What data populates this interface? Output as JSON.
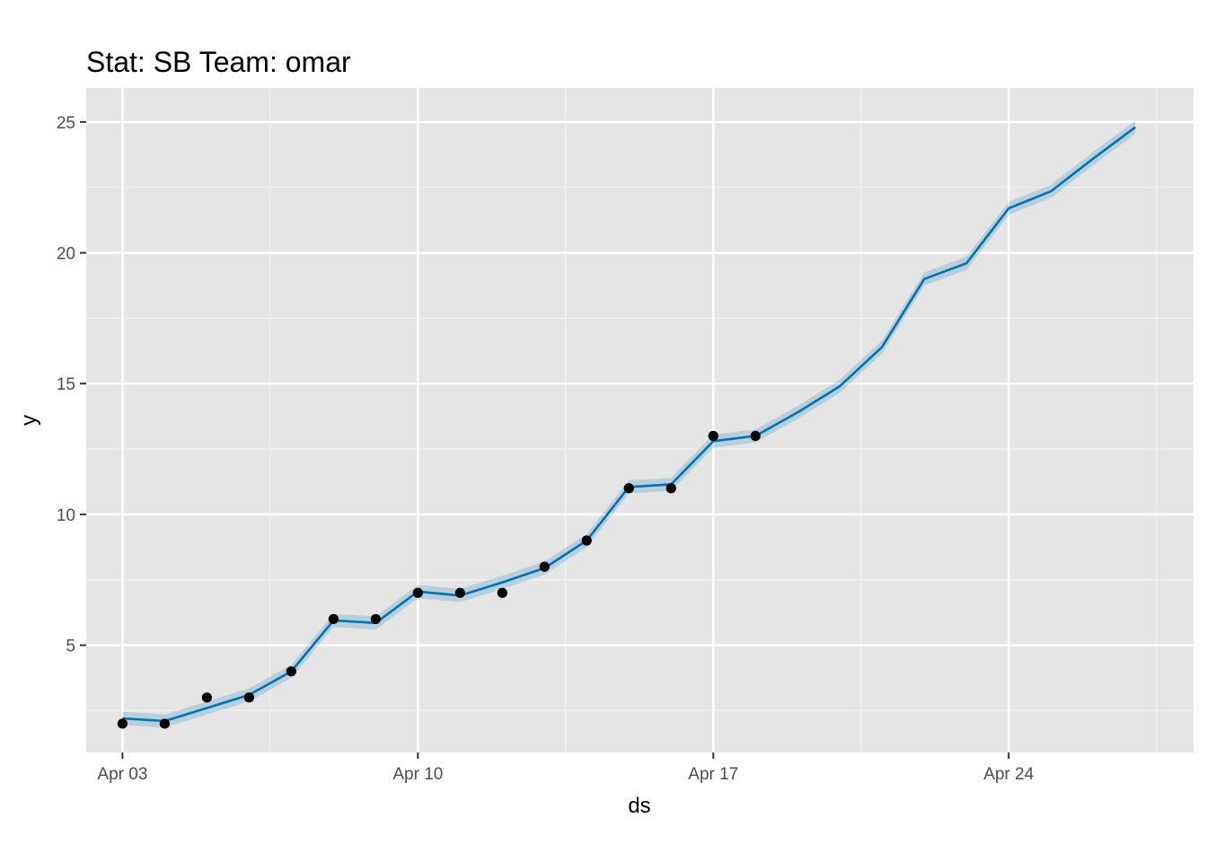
{
  "chart_data": {
    "type": "line",
    "title": "Stat: SB Team: omar",
    "xlabel": "ds",
    "ylabel": "y",
    "x_ticks": [
      {
        "date": "2023-04-03",
        "label": "Apr 03"
      },
      {
        "date": "2023-04-10",
        "label": "Apr 10"
      },
      {
        "date": "2023-04-17",
        "label": "Apr 17"
      },
      {
        "date": "2023-04-24",
        "label": "Apr 24"
      }
    ],
    "y_ticks": [
      5,
      10,
      15,
      20,
      25
    ],
    "xlim": [
      "2023-04-02",
      "2023-04-28"
    ],
    "ylim": [
      0.9,
      26.3
    ],
    "grid": true,
    "series": [
      {
        "kind": "forecast",
        "color": "#0072B2",
        "band_color": "#0072B2",
        "points": [
          {
            "x": "2023-04-03",
            "y": 2.2,
            "lo": 1.95,
            "hi": 2.45
          },
          {
            "x": "2023-04-04",
            "y": 2.1,
            "lo": 1.85,
            "hi": 2.35
          },
          {
            "x": "2023-04-05",
            "y": 2.6,
            "lo": 2.35,
            "hi": 2.85
          },
          {
            "x": "2023-04-06",
            "y": 3.1,
            "lo": 2.85,
            "hi": 3.35
          },
          {
            "x": "2023-04-07",
            "y": 4.0,
            "lo": 3.75,
            "hi": 4.25
          },
          {
            "x": "2023-04-08",
            "y": 5.95,
            "lo": 5.7,
            "hi": 6.2
          },
          {
            "x": "2023-04-09",
            "y": 5.85,
            "lo": 5.6,
            "hi": 6.1
          },
          {
            "x": "2023-04-10",
            "y": 7.05,
            "lo": 6.8,
            "hi": 7.3
          },
          {
            "x": "2023-04-11",
            "y": 6.9,
            "lo": 6.65,
            "hi": 7.15
          },
          {
            "x": "2023-04-12",
            "y": 7.4,
            "lo": 7.15,
            "hi": 7.65
          },
          {
            "x": "2023-04-13",
            "y": 7.95,
            "lo": 7.7,
            "hi": 8.2
          },
          {
            "x": "2023-04-14",
            "y": 9.0,
            "lo": 8.75,
            "hi": 9.25
          },
          {
            "x": "2023-04-15",
            "y": 11.05,
            "lo": 10.8,
            "hi": 11.3
          },
          {
            "x": "2023-04-16",
            "y": 11.15,
            "lo": 10.9,
            "hi": 11.4
          },
          {
            "x": "2023-04-17",
            "y": 12.8,
            "lo": 12.55,
            "hi": 13.05
          },
          {
            "x": "2023-04-18",
            "y": 13.0,
            "lo": 12.75,
            "hi": 13.25
          },
          {
            "x": "2023-04-19",
            "y": 13.9,
            "lo": 13.65,
            "hi": 14.15
          },
          {
            "x": "2023-04-20",
            "y": 14.9,
            "lo": 14.65,
            "hi": 15.15
          },
          {
            "x": "2023-04-21",
            "y": 16.4,
            "lo": 16.15,
            "hi": 16.65
          },
          {
            "x": "2023-04-22",
            "y": 19.0,
            "lo": 18.75,
            "hi": 19.25
          },
          {
            "x": "2023-04-23",
            "y": 19.6,
            "lo": 19.35,
            "hi": 19.85
          },
          {
            "x": "2023-04-24",
            "y": 21.7,
            "lo": 21.45,
            "hi": 21.95
          },
          {
            "x": "2023-04-25",
            "y": 22.35,
            "lo": 22.1,
            "hi": 22.6
          },
          {
            "x": "2023-04-26",
            "y": 23.6,
            "lo": 23.35,
            "hi": 23.85
          },
          {
            "x": "2023-04-27",
            "y": 24.8,
            "lo": 24.55,
            "hi": 25.05
          }
        ]
      },
      {
        "kind": "observed",
        "color": "#000000",
        "points": [
          {
            "x": "2023-04-03",
            "y": 2
          },
          {
            "x": "2023-04-04",
            "y": 2
          },
          {
            "x": "2023-04-05",
            "y": 3
          },
          {
            "x": "2023-04-06",
            "y": 3
          },
          {
            "x": "2023-04-07",
            "y": 4
          },
          {
            "x": "2023-04-08",
            "y": 6
          },
          {
            "x": "2023-04-09",
            "y": 6
          },
          {
            "x": "2023-04-10",
            "y": 7
          },
          {
            "x": "2023-04-11",
            "y": 7
          },
          {
            "x": "2023-04-12",
            "y": 7
          },
          {
            "x": "2023-04-13",
            "y": 8
          },
          {
            "x": "2023-04-14",
            "y": 9
          },
          {
            "x": "2023-04-15",
            "y": 11
          },
          {
            "x": "2023-04-16",
            "y": 11
          },
          {
            "x": "2023-04-17",
            "y": 13
          },
          {
            "x": "2023-04-18",
            "y": 13
          }
        ]
      }
    ]
  }
}
